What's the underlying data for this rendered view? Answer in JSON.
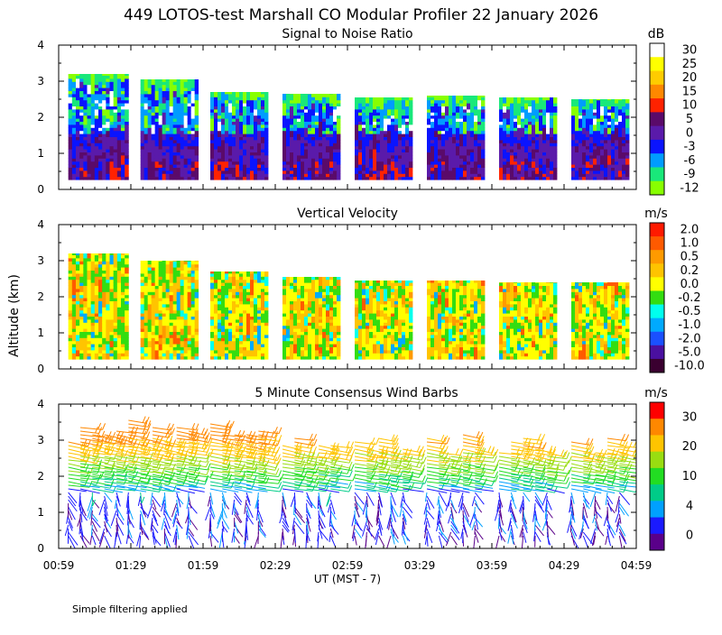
{
  "title": "449 LOTOS-test Marshall CO Modular Profiler 22 January 2026",
  "footnote": "Simple filtering applied",
  "x_axis": {
    "label": "UT  (MST - 7)",
    "ticks": [
      "00:59",
      "01:29",
      "01:59",
      "02:29",
      "02:59",
      "03:29",
      "03:59",
      "04:29",
      "04:59"
    ]
  },
  "y_axis": {
    "label": "Altitude (km)",
    "ticks": [
      "0",
      "1",
      "2",
      "3",
      "4"
    ]
  },
  "chart_data": [
    {
      "type": "heatmap",
      "title": "Signal to Noise Ratio",
      "xlabel": "UT  (MST - 7)",
      "ylabel": "Altitude (km)",
      "xlim": [
        "00:59",
        "04:59"
      ],
      "ylim": [
        0,
        4
      ],
      "colorbar": {
        "unit": "dB",
        "labels": [
          "30",
          "25",
          "20",
          "15",
          "10",
          "5",
          "0",
          "-3",
          "-6",
          "-9",
          "-12"
        ],
        "colors": [
          "#ffffff",
          "#ffff00",
          "#ffcc00",
          "#ff8800",
          "#ff2200",
          "#5a0a6a",
          "#5a1aaa",
          "#0a14ff",
          "#009cff",
          "#19e87a",
          "#88ff00"
        ]
      },
      "blocks": [
        {
          "start": "01:03",
          "end": "01:28",
          "top_km": 3.2
        },
        {
          "start": "01:33",
          "end": "01:57",
          "top_km": 3.05
        },
        {
          "start": "02:02",
          "end": "02:26",
          "top_km": 2.7
        },
        {
          "start": "02:32",
          "end": "02:56",
          "top_km": 2.65
        },
        {
          "start": "03:02",
          "end": "03:26",
          "top_km": 2.55
        },
        {
          "start": "03:32",
          "end": "03:56",
          "top_km": 2.6
        },
        {
          "start": "04:02",
          "end": "04:26",
          "top_km": 2.55
        },
        {
          "start": "04:32",
          "end": "04:56",
          "top_km": 2.5
        }
      ]
    },
    {
      "type": "heatmap",
      "title": "Vertical Velocity",
      "xlabel": "UT  (MST - 7)",
      "ylabel": "Altitude (km)",
      "xlim": [
        "00:59",
        "04:59"
      ],
      "ylim": [
        0,
        4
      ],
      "colorbar": {
        "unit": "m/s",
        "labels": [
          "2.0",
          "1.0",
          "0.5",
          "0.2",
          "0.0",
          "-0.2",
          "-0.5",
          "-1.0",
          "-2.0",
          "-5.0",
          "-10.0"
        ],
        "colors": [
          "#ff1a00",
          "#ff5a00",
          "#ff9a00",
          "#ffc400",
          "#ffff00",
          "#33dd11",
          "#00ffee",
          "#00aaff",
          "#1a50ff",
          "#4a10a0",
          "#3a0030"
        ]
      },
      "blocks": [
        {
          "start": "01:03",
          "end": "01:28",
          "top_km": 3.2
        },
        {
          "start": "01:33",
          "end": "01:57",
          "top_km": 3.0
        },
        {
          "start": "02:02",
          "end": "02:26",
          "top_km": 2.7
        },
        {
          "start": "02:32",
          "end": "02:56",
          "top_km": 2.55
        },
        {
          "start": "03:02",
          "end": "03:26",
          "top_km": 2.45
        },
        {
          "start": "03:32",
          "end": "03:56",
          "top_km": 2.45
        },
        {
          "start": "04:02",
          "end": "04:26",
          "top_km": 2.4
        },
        {
          "start": "04:32",
          "end": "04:56",
          "top_km": 2.4
        }
      ]
    },
    {
      "type": "scatter",
      "title": "5 Minute Consensus Wind Barbs",
      "xlabel": "UT  (MST - 7)",
      "ylabel": "Altitude (km)",
      "xlim": [
        "00:59",
        "04:59"
      ],
      "ylim": [
        0,
        4
      ],
      "colorbar": {
        "unit": "m/s",
        "labels": [
          "30",
          "20",
          "10",
          "4",
          "0"
        ],
        "colors": [
          "#ff0000",
          "#ff8800",
          "#ffc400",
          "#99dd11",
          "#22dd22",
          "#00cc88",
          "#00a0ff",
          "#1a1aff",
          "#5a008a"
        ]
      },
      "barb_columns": [
        "01:03",
        "01:08",
        "01:13",
        "01:18",
        "01:23",
        "01:28",
        "01:33",
        "01:38",
        "01:43",
        "01:48",
        "01:53",
        "02:02",
        "02:07",
        "02:12",
        "02:17",
        "02:22",
        "02:32",
        "02:37",
        "02:42",
        "02:47",
        "02:52",
        "03:02",
        "03:07",
        "03:12",
        "03:17",
        "03:22",
        "03:32",
        "03:37",
        "03:42",
        "03:47",
        "03:52",
        "04:02",
        "04:07",
        "04:12",
        "04:17",
        "04:22",
        "04:32",
        "04:37",
        "04:42",
        "04:47",
        "04:52"
      ],
      "speed_profile_mps": [
        {
          "alt_km": 0.5,
          "speed": 3
        },
        {
          "alt_km": 1.0,
          "speed": 3.5
        },
        {
          "alt_km": 1.5,
          "speed": 4
        },
        {
          "alt_km": 1.9,
          "speed": 8
        },
        {
          "alt_km": 2.3,
          "speed": 12
        },
        {
          "alt_km": 2.7,
          "speed": 17
        },
        {
          "alt_km": 3.1,
          "speed": 22
        },
        {
          "alt_km": 3.5,
          "speed": 24
        }
      ]
    }
  ]
}
